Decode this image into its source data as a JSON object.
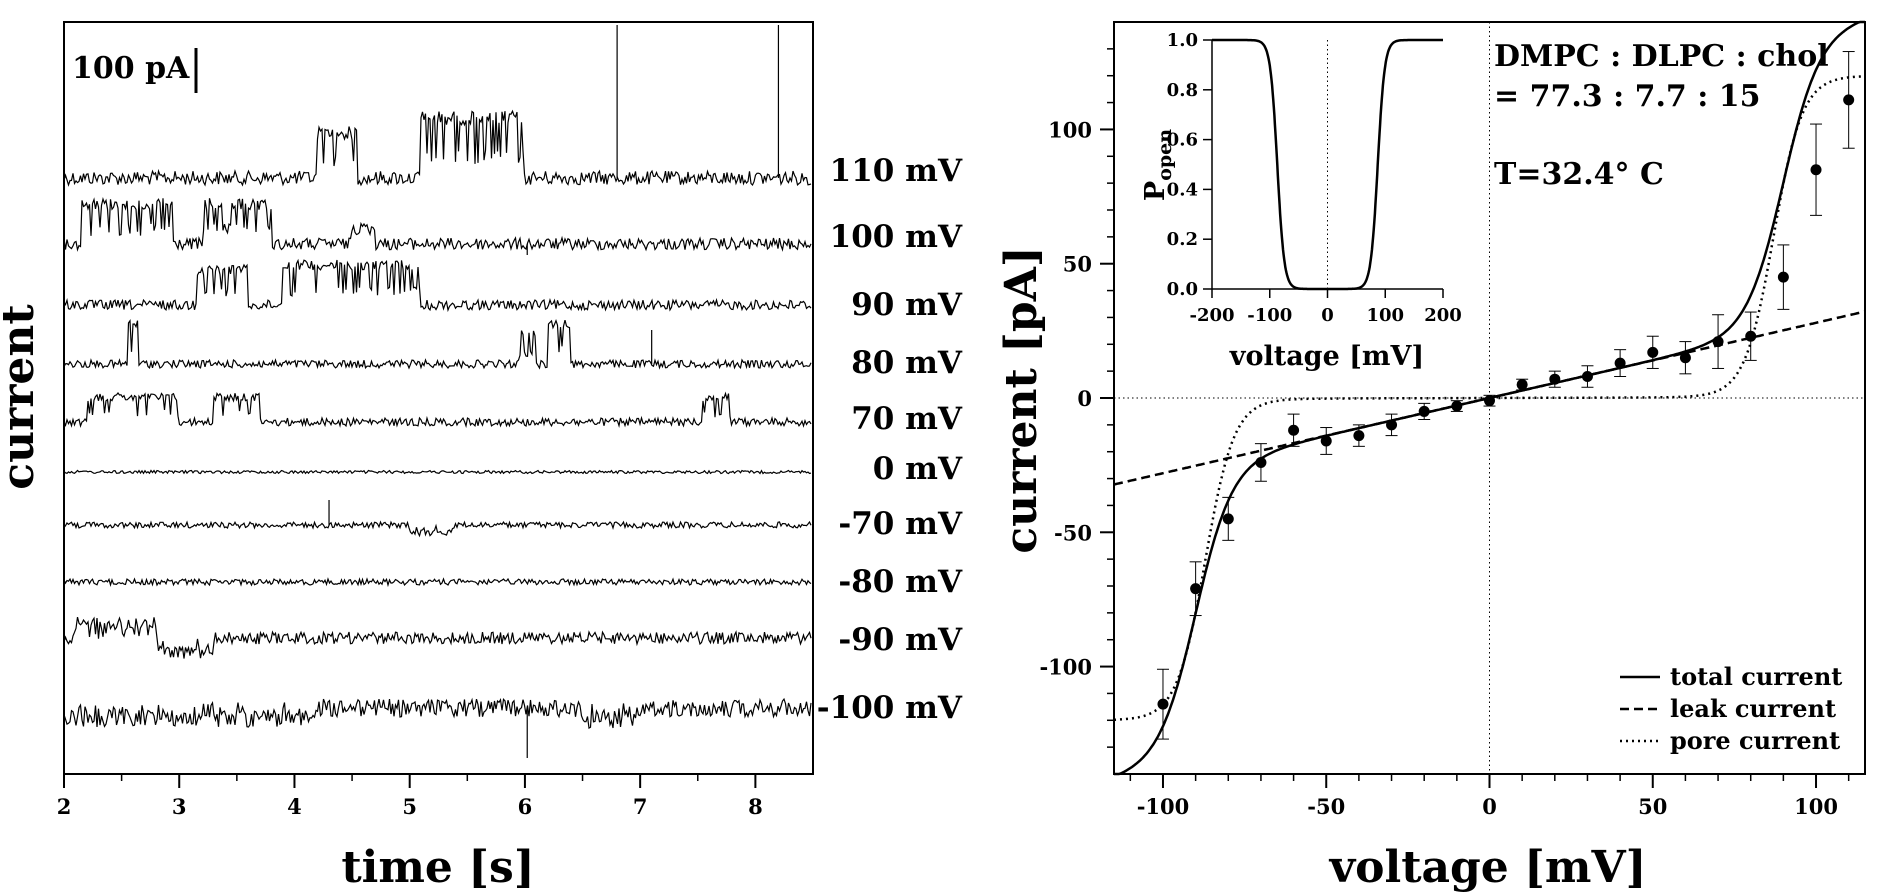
{
  "chart_data": [
    {
      "type": "line",
      "panel": "left",
      "title": "",
      "xlabel": "time [s]",
      "ylabel": "current",
      "xlim": [
        2,
        8.5
      ],
      "xticks": [
        2,
        3,
        4,
        5,
        6,
        7,
        8
      ],
      "scale_bar": "100 pA",
      "traces": [
        {
          "label": "110 mV",
          "bursts": [
            [
              4.2,
              4.55,
              45
            ],
            [
              5.1,
              6.0,
              60
            ]
          ],
          "noise": 7
        },
        {
          "label": "100 mV",
          "bursts": [
            [
              2.15,
              2.95,
              40
            ],
            [
              3.2,
              3.8,
              40
            ],
            [
              4.5,
              4.7,
              15
            ]
          ],
          "noise": 6
        },
        {
          "label": "90 mV",
          "bursts": [
            [
              3.15,
              3.6,
              35
            ],
            [
              3.9,
              5.1,
              40
            ]
          ],
          "noise": 5
        },
        {
          "label": "80 mV",
          "bursts": [
            [
              2.55,
              2.65,
              40
            ],
            [
              5.95,
              6.1,
              30
            ],
            [
              6.2,
              6.4,
              40
            ]
          ],
          "noise": 4
        },
        {
          "label": "70 mV",
          "bursts": [
            [
              2.2,
              3.0,
              25
            ],
            [
              3.3,
              3.7,
              25
            ],
            [
              7.55,
              7.8,
              25
            ]
          ],
          "noise": 4
        },
        {
          "label": "0 mV",
          "bursts": [],
          "noise": 1.5
        },
        {
          "label": "-70 mV",
          "bursts": [
            [
              5.0,
              5.4,
              -8
            ]
          ],
          "noise": 3
        },
        {
          "label": "-80 mV",
          "bursts": [],
          "noise": 3
        },
        {
          "label": "-90 mV",
          "bursts": [
            [
              2.1,
              2.8,
              15
            ],
            [
              2.8,
              3.3,
              -15
            ]
          ],
          "noise": 6
        },
        {
          "label": "-100 mV",
          "bursts": [
            [
              2.0,
              4.2,
              -10
            ],
            [
              6.5,
              7.0,
              -12
            ]
          ],
          "noise": 9
        }
      ]
    },
    {
      "type": "line",
      "panel": "right",
      "title": "",
      "xlabel": "voltage [mV]",
      "ylabel": "current [pA]",
      "xlim": [
        -115,
        115
      ],
      "ylim": [
        -140,
        140
      ],
      "xticks": [
        -100,
        -50,
        0,
        50,
        100
      ],
      "yticks": [
        -100,
        -50,
        0,
        50,
        100
      ],
      "annotation_lipids": "DMPC : DLPC : chol",
      "annotation_ratio": "= 77.3 : 7.7 : 15",
      "annotation_temp": "T=32.4° C",
      "legend": [
        "total current",
        "leak current",
        "pore current"
      ],
      "legend_position": "bottom-right",
      "points": {
        "x": [
          -100,
          -90,
          -80,
          -70,
          -60,
          -50,
          -40,
          -30,
          -20,
          -10,
          0,
          10,
          20,
          30,
          40,
          50,
          60,
          70,
          80,
          90,
          100,
          110
        ],
        "y": [
          -114,
          -71,
          -45,
          -24,
          -12,
          -16,
          -14,
          -10,
          -5,
          -3,
          -1,
          5,
          7,
          8,
          13,
          17,
          15,
          21,
          23,
          45,
          85,
          111
        ],
        "err": [
          13,
          10,
          8,
          7,
          6,
          5,
          4,
          4,
          3,
          2,
          2,
          2,
          3,
          4,
          5,
          6,
          6,
          10,
          9,
          12,
          17,
          18
        ]
      },
      "leak_slope": 0.28,
      "pore_params": {
        "vthresh": 87,
        "width": 4.4,
        "gmax": 7.0,
        "sat": 120
      },
      "inset": {
        "xlabel": "voltage [mV]",
        "ylabel": "P",
        "ylabel_sub": "open",
        "xlim": [
          -200,
          200
        ],
        "ylim": [
          0,
          1
        ],
        "xticks": [
          -200,
          -100,
          0,
          100,
          200
        ],
        "yticks": [
          "0.0",
          "0.2",
          "0.4",
          "0.6",
          "0.8",
          "1.0"
        ],
        "vthresh": 87,
        "width": 6
      }
    }
  ]
}
